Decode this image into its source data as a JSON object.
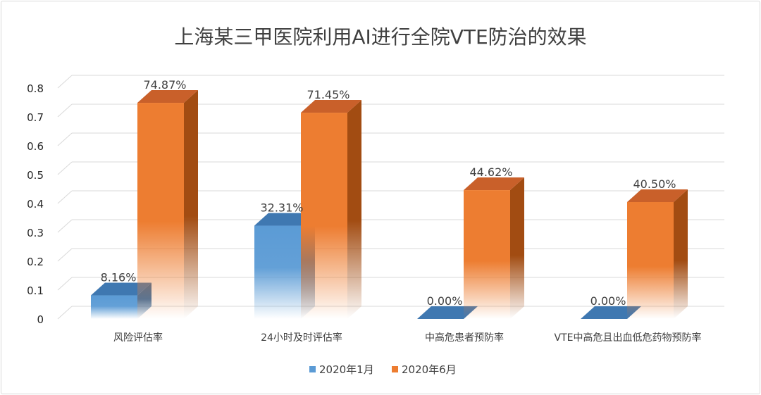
{
  "chart_data": {
    "type": "bar",
    "style": "3d-clustered-column",
    "title": "上海某三甲医院利用AI进行全院VTE防治的效果",
    "categories": [
      "风险评估率",
      "24小时及时评估率",
      "中高危患者预防率",
      "VTE中高危且出血低危药物预防率"
    ],
    "series": [
      {
        "name": "2020年1月",
        "color": "#5b9bd5",
        "values": [
          0.0816,
          0.3231,
          0.0,
          0.0
        ],
        "labels": [
          "8.16%",
          "32.31%",
          "0.00%",
          "0.00%"
        ]
      },
      {
        "name": "2020年6月",
        "color": "#ed7d31",
        "values": [
          0.7487,
          0.7145,
          0.4462,
          0.405
        ],
        "labels": [
          "74.87%",
          "71.45%",
          "44.62%",
          "40.50%"
        ]
      }
    ],
    "yticks": [
      "0",
      "0.1",
      "0.2",
      "0.3",
      "0.4",
      "0.5",
      "0.6",
      "0.7",
      "0.8"
    ],
    "ylim": [
      0,
      0.8
    ],
    "grid": true,
    "legend_position": "bottom"
  }
}
